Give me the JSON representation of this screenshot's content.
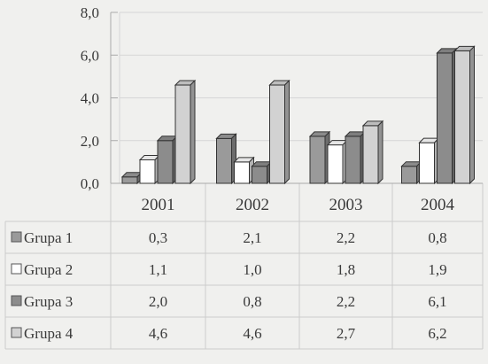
{
  "chart_data": {
    "type": "bar",
    "categories": [
      "2001",
      "2002",
      "2003",
      "2004"
    ],
    "series": [
      {
        "name": "Grupa 1",
        "values": [
          0.3,
          2.1,
          2.2,
          0.8
        ],
        "labels": [
          "0,3",
          "2,1",
          "2,2",
          "0,8"
        ],
        "color": "#9a9a9a"
      },
      {
        "name": "Grupa 2",
        "values": [
          1.1,
          1.0,
          1.8,
          1.9
        ],
        "labels": [
          "1,1",
          "1,0",
          "1,8",
          "1,9"
        ],
        "color": "#ffffff"
      },
      {
        "name": "Grupa 3",
        "values": [
          2.0,
          0.8,
          2.2,
          6.1
        ],
        "labels": [
          "2,0",
          "0,8",
          "2,2",
          "6,1"
        ],
        "color": "#8c8c8c"
      },
      {
        "name": "Grupa 4",
        "values": [
          4.6,
          4.6,
          2.7,
          6.2
        ],
        "labels": [
          "4,6",
          "4,6",
          "2,7",
          "6,2"
        ],
        "color": "#d2d2d2"
      }
    ],
    "yticks": [
      "0,0",
      "2,0",
      "4,0",
      "6,0",
      "8,0"
    ],
    "ylim": [
      0,
      8
    ],
    "grid": true,
    "legend": "data-table"
  }
}
